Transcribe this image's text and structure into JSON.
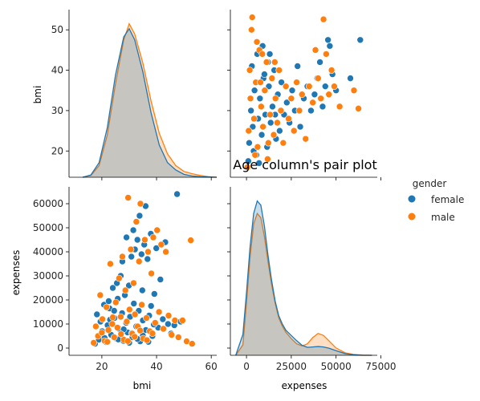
{
  "chart_data": {
    "type": "scatter",
    "kind": "pairplot",
    "title": "Age column's pair plot",
    "variables": [
      "bmi",
      "expenses"
    ],
    "hue": "gender",
    "legend": {
      "title": "gender",
      "placement": "right",
      "entries": [
        {
          "name": "female",
          "color": "#1f77b4"
        },
        {
          "name": "male",
          "color": "#ff7f0e"
        }
      ]
    },
    "grid": false,
    "axes": {
      "bmi": {
        "label": "bmi",
        "range_x": [
          8,
          62
        ],
        "range_y": [
          13.5,
          55
        ],
        "ticks_x": [
          20,
          40,
          60
        ],
        "ticks_y": [
          20,
          30,
          40,
          50
        ]
      },
      "expenses": {
        "label": "expenses",
        "range_x": [
          -9000,
          73000
        ],
        "range_y": [
          -3000,
          67000
        ],
        "ticks_x": [
          0,
          25000,
          50000,
          75000
        ],
        "ticks_y": [
          0,
          10000,
          20000,
          30000,
          40000,
          50000,
          60000
        ]
      }
    },
    "bmi_kde": {
      "x": [
        13,
        16,
        19,
        22,
        25,
        28,
        30,
        32,
        35,
        38,
        41,
        44,
        47,
        50,
        53,
        56,
        59,
        62
      ],
      "female": [
        0.0,
        0.0008,
        0.005,
        0.017,
        0.035,
        0.048,
        0.0508,
        0.047,
        0.036,
        0.022,
        0.011,
        0.005,
        0.0025,
        0.001,
        0.0004,
        0.00015,
        5e-05,
        0.0
      ],
      "male": [
        0.0,
        0.0006,
        0.004,
        0.0145,
        0.032,
        0.047,
        0.0525,
        0.049,
        0.039,
        0.026,
        0.015,
        0.008,
        0.004,
        0.002,
        0.0012,
        0.0006,
        0.0002,
        0.0
      ]
    },
    "expenses_kde": {
      "x": [
        -6000,
        -2000,
        0,
        2000,
        4000,
        6000,
        8000,
        10000,
        12000,
        14000,
        16000,
        18000,
        20000,
        22000,
        25000,
        28000,
        31000,
        34000,
        37000,
        40000,
        43000,
        46000,
        50000,
        55000,
        60000,
        65000,
        70000
      ],
      "female": [
        0.0,
        1e-05,
        3e-05,
        5.2e-05,
        6.8e-05,
        7.4e-05,
        7.2e-05,
        6.2e-05,
        4.8e-05,
        3.6e-05,
        2.6e-05,
        1.9e-05,
        1.5e-05,
        1.2e-05,
        9.5e-06,
        7e-06,
        4.8e-06,
        3.8e-06,
        4e-06,
        4.2e-06,
        4e-06,
        3.4e-06,
        2.2e-06,
        8e-07,
        2e-07,
        0.0,
        0.0
      ],
      "male": [
        0.0,
        5e-06,
        2.5e-05,
        4.7e-05,
        6.3e-05,
        6.8e-05,
        6.6e-05,
        5.7e-05,
        4.5e-05,
        3.4e-05,
        2.5e-05,
        1.8e-05,
        1.4e-05,
        1.1e-05,
        8e-06,
        5.5e-06,
        4.5e-06,
        5.5e-06,
        8.5e-06,
        1.05e-05,
        9.5e-06,
        7e-06,
        3.5e-06,
        1.2e-06,
        4e-07,
        1e-07,
        0.0
      ]
    },
    "scatter_points": {
      "female": [
        [
          17.5,
          1800
        ],
        [
          18.2,
          14000
        ],
        [
          18.9,
          3500
        ],
        [
          19.5,
          11000
        ],
        [
          20.1,
          7000
        ],
        [
          20.8,
          18000
        ],
        [
          21.5,
          2500
        ],
        [
          22.1,
          9500
        ],
        [
          22.8,
          16500
        ],
        [
          23.4,
          5500
        ],
        [
          24.0,
          25000
        ],
        [
          24.6,
          12500
        ],
        [
          25.2,
          4000
        ],
        [
          25.8,
          20500
        ],
        [
          26.3,
          8000
        ],
        [
          26.9,
          30000
        ],
        [
          27.4,
          14500
        ],
        [
          27.9,
          3000
        ],
        [
          28.4,
          22000
        ],
        [
          28.9,
          10500
        ],
        [
          29.4,
          6500
        ],
        [
          29.9,
          26000
        ],
        [
          30.3,
          13000
        ],
        [
          30.8,
          38000
        ],
        [
          31.2,
          4500
        ],
        [
          31.7,
          18500
        ],
        [
          32.1,
          41000
        ],
        [
          32.6,
          9000
        ],
        [
          33.0,
          45000
        ],
        [
          33.5,
          15500
        ],
        [
          34.0,
          2800
        ],
        [
          34.5,
          39000
        ],
        [
          35.0,
          11500
        ],
        [
          35.5,
          43000
        ],
        [
          36.1,
          7500
        ],
        [
          36.7,
          37000
        ],
        [
          37.3,
          13500
        ],
        [
          37.9,
          47500
        ],
        [
          38.5,
          5000
        ],
        [
          39.2,
          22500
        ],
        [
          39.9,
          41500
        ],
        [
          40.6,
          8500
        ],
        [
          41.4,
          28500
        ],
        [
          42.3,
          12000
        ],
        [
          43.2,
          44000
        ],
        [
          44.2,
          10000
        ],
        [
          45.3,
          6000
        ],
        [
          46.5,
          9500
        ],
        [
          47.5,
          64000
        ],
        [
          48.8,
          11000
        ],
        [
          21.0,
          4200
        ],
        [
          23.0,
          11800
        ],
        [
          26.0,
          3600
        ],
        [
          28.0,
          7800
        ],
        [
          30.0,
          2200
        ],
        [
          31.0,
          6200
        ],
        [
          33.0,
          3800
        ],
        [
          35.0,
          5200
        ],
        [
          37.0,
          2600
        ],
        [
          39.0,
          9800
        ],
        [
          29.0,
          46000
        ],
        [
          31.5,
          49000
        ],
        [
          33.8,
          55000
        ],
        [
          36.0,
          59000
        ],
        [
          27.5,
          36000
        ],
        [
          25.5,
          27000
        ],
        [
          22.5,
          19500
        ],
        [
          24.5,
          15500
        ],
        [
          34.8,
          24000
        ],
        [
          38.0,
          17500
        ]
      ],
      "male": [
        [
          17.0,
          2200
        ],
        [
          17.8,
          9000
        ],
        [
          18.6,
          5000
        ],
        [
          19.4,
          22000
        ],
        [
          20.2,
          12000
        ],
        [
          21.0,
          3000
        ],
        [
          21.7,
          17000
        ],
        [
          22.4,
          7500
        ],
        [
          23.1,
          35000
        ],
        [
          23.8,
          10000
        ],
        [
          24.5,
          4500
        ],
        [
          25.1,
          19000
        ],
        [
          25.7,
          8500
        ],
        [
          26.3,
          29000
        ],
        [
          26.9,
          13000
        ],
        [
          27.5,
          38000
        ],
        [
          28.0,
          3500
        ],
        [
          28.6,
          24000
        ],
        [
          29.1,
          11000
        ],
        [
          29.6,
          62500
        ],
        [
          30.1,
          16000
        ],
        [
          30.6,
          41000
        ],
        [
          31.1,
          6000
        ],
        [
          31.6,
          27000
        ],
        [
          32.1,
          14000
        ],
        [
          32.6,
          52500
        ],
        [
          33.1,
          9000
        ],
        [
          33.6,
          36000
        ],
        [
          34.1,
          60000
        ],
        [
          34.6,
          18000
        ],
        [
          35.1,
          4000
        ],
        [
          35.7,
          45000
        ],
        [
          36.3,
          12500
        ],
        [
          36.9,
          40000
        ],
        [
          37.5,
          7000
        ],
        [
          38.1,
          31000
        ],
        [
          38.8,
          46000
        ],
        [
          39.5,
          10500
        ],
        [
          40.2,
          49000
        ],
        [
          40.9,
          15000
        ],
        [
          41.7,
          43000
        ],
        [
          42.5,
          8000
        ],
        [
          43.4,
          40000
        ],
        [
          44.4,
          13500
        ],
        [
          45.5,
          5500
        ],
        [
          46.7,
          11500
        ],
        [
          48.0,
          4500
        ],
        [
          49.5,
          11500
        ],
        [
          51.0,
          2800
        ],
        [
          52.5,
          44800
        ],
        [
          53.0,
          1800
        ],
        [
          20.0,
          6400
        ],
        [
          22.0,
          2600
        ],
        [
          24.0,
          12800
        ],
        [
          27.0,
          5800
        ],
        [
          29.5,
          2900
        ],
        [
          32.0,
          4700
        ],
        [
          34.0,
          7300
        ],
        [
          36.5,
          3300
        ],
        [
          38.5,
          6100
        ]
      ]
    },
    "expenses_bmi_points": {
      "female": [
        [
          1500,
          22
        ],
        [
          2500,
          30
        ],
        [
          3500,
          26
        ],
        [
          4500,
          35
        ],
        [
          5500,
          19
        ],
        [
          6500,
          28
        ],
        [
          7500,
          33
        ],
        [
          8500,
          24
        ],
        [
          9500,
          38
        ],
        [
          10500,
          29
        ],
        [
          11500,
          21
        ],
        [
          12500,
          36
        ],
        [
          13500,
          27
        ],
        [
          14500,
          31
        ],
        [
          15500,
          40
        ],
        [
          16500,
          23
        ],
        [
          17500,
          34
        ],
        [
          18500,
          25
        ],
        [
          19500,
          37
        ],
        [
          21000,
          29
        ],
        [
          22500,
          32
        ],
        [
          24000,
          27
        ],
        [
          25500,
          35
        ],
        [
          27000,
          30
        ],
        [
          28500,
          41
        ],
        [
          30000,
          26
        ],
        [
          32000,
          33
        ],
        [
          34000,
          36
        ],
        [
          36000,
          30
        ],
        [
          38000,
          34
        ],
        [
          39500,
          38
        ],
        [
          41000,
          42
        ],
        [
          42500,
          31
        ],
        [
          44000,
          36
        ],
        [
          45500,
          47.5
        ],
        [
          46500,
          46
        ],
        [
          48000,
          39
        ],
        [
          50000,
          35
        ],
        [
          58000,
          38
        ],
        [
          63500,
          47.5
        ],
        [
          1000,
          17.5
        ],
        [
          3000,
          41
        ],
        [
          6000,
          44
        ],
        [
          9000,
          46
        ],
        [
          12000,
          42
        ],
        [
          4000,
          20
        ],
        [
          7000,
          17
        ],
        [
          10000,
          39
        ],
        [
          13000,
          44
        ],
        [
          16000,
          29
        ]
      ],
      "male": [
        [
          1200,
          25
        ],
        [
          2200,
          33
        ],
        [
          3200,
          53.1
        ],
        [
          4200,
          28
        ],
        [
          5200,
          37
        ],
        [
          6200,
          21
        ],
        [
          7200,
          45
        ],
        [
          8200,
          31
        ],
        [
          9200,
          26
        ],
        [
          10200,
          35
        ],
        [
          11200,
          42
        ],
        [
          12200,
          22
        ],
        [
          13200,
          29
        ],
        [
          14200,
          38
        ],
        [
          15200,
          24
        ],
        [
          16200,
          33
        ],
        [
          17200,
          27
        ],
        [
          18200,
          40
        ],
        [
          19200,
          30
        ],
        [
          20500,
          22
        ],
        [
          22000,
          36
        ],
        [
          23500,
          28
        ],
        [
          25000,
          33
        ],
        [
          26500,
          25
        ],
        [
          28000,
          37
        ],
        [
          29500,
          30
        ],
        [
          31000,
          34
        ],
        [
          33000,
          23
        ],
        [
          35000,
          36
        ],
        [
          37000,
          32
        ],
        [
          38500,
          45
        ],
        [
          40000,
          38
        ],
        [
          41500,
          33
        ],
        [
          43000,
          52.6
        ],
        [
          44500,
          44
        ],
        [
          46000,
          34
        ],
        [
          47500,
          40
        ],
        [
          49000,
          36
        ],
        [
          52000,
          31
        ],
        [
          62500,
          30.5
        ],
        [
          500,
          16
        ],
        [
          2800,
          50
        ],
        [
          5800,
          47
        ],
        [
          8800,
          44
        ],
        [
          11800,
          18
        ],
        [
          15800,
          42
        ],
        [
          60000,
          35
        ],
        [
          1800,
          40
        ],
        [
          4800,
          19
        ],
        [
          7800,
          37
        ]
      ]
    }
  }
}
